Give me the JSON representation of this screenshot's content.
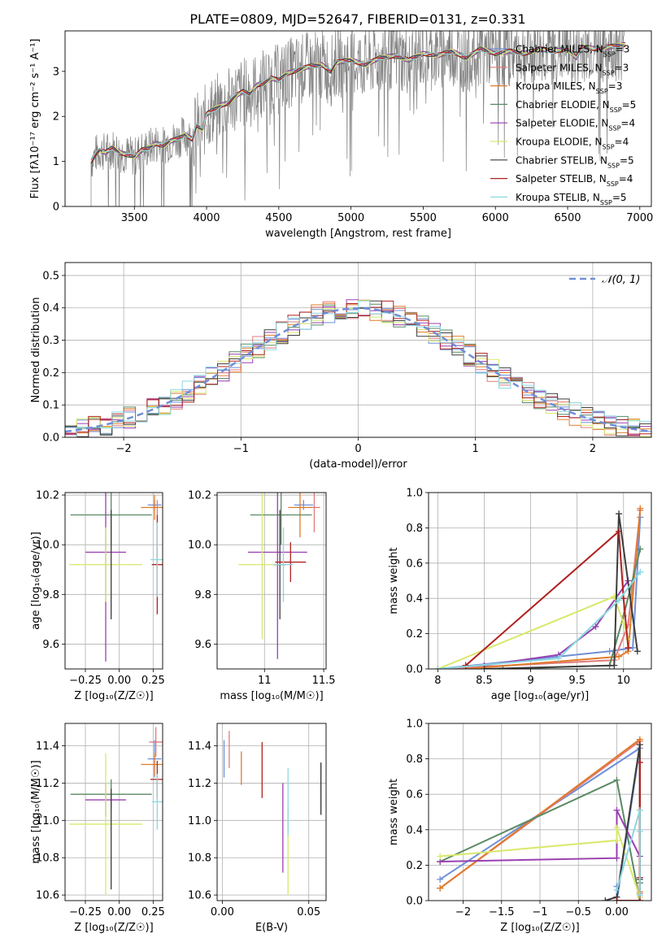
{
  "figure": {
    "title": "PLATE=0809, MJD=52647, FIBERID=0131, z=0.331"
  },
  "models": [
    {
      "name": "Chabrier MILES",
      "nssp": "3",
      "color": "#6f8fd8"
    },
    {
      "name": "Salpeter MILES",
      "nssp": "3",
      "color": "#e07b7b"
    },
    {
      "name": "Kroupa MILES",
      "nssp": "3",
      "color": "#e07b2a"
    },
    {
      "name": "Chabrier ELODIE",
      "nssp": "5",
      "color": "#5a8a64"
    },
    {
      "name": "Salpeter ELODIE",
      "nssp": "4",
      "color": "#9a3fb0"
    },
    {
      "name": "Kroupa ELODIE",
      "nssp": "4",
      "color": "#d9e86a"
    },
    {
      "name": "Chabrier STELIB",
      "nssp": "5",
      "color": "#3c3c3c"
    },
    {
      "name": "Salpeter STELIB",
      "nssp": "4",
      "color": "#b02020"
    },
    {
      "name": "Kroupa STELIB",
      "nssp": "5",
      "color": "#8ad8e0"
    }
  ],
  "chart_data": [
    {
      "id": "spectrum",
      "type": "line",
      "xlabel": "wavelength [Angstrom, rest frame]",
      "ylabel": "Flux [fλ10⁻¹⁷ erg cm⁻² s⁻¹ A⁻¹]",
      "xlim": [
        3020,
        7080
      ],
      "ylim": [
        0,
        3.9
      ],
      "xticks": [
        3500,
        4000,
        4500,
        5000,
        5500,
        6000,
        6500,
        7000
      ],
      "yticks": [
        0,
        1,
        2,
        3
      ],
      "data_color": "#808080",
      "model_line": {
        "x": [
          3200,
          3230,
          3260,
          3300,
          3350,
          3400,
          3450,
          3500,
          3550,
          3600,
          3650,
          3700,
          3750,
          3800,
          3850,
          3900,
          3930,
          3970,
          4000,
          4050,
          4100,
          4150,
          4200,
          4250,
          4300,
          4350,
          4400,
          4450,
          4500,
          4550,
          4600,
          4700,
          4800,
          4860,
          4900,
          5000,
          5100,
          5200,
          5300,
          5400,
          5500,
          5600,
          5700,
          5800,
          5900,
          6000,
          6100,
          6200,
          6300,
          6400,
          6500,
          6560,
          6600,
          6700,
          6800,
          6900
        ],
        "y": [
          1.0,
          1.15,
          1.25,
          1.2,
          1.3,
          1.2,
          1.15,
          1.1,
          1.25,
          1.3,
          1.4,
          1.35,
          1.45,
          1.5,
          1.6,
          1.5,
          1.8,
          1.7,
          2.05,
          2.15,
          2.25,
          2.3,
          2.45,
          2.55,
          2.5,
          2.7,
          2.75,
          2.85,
          2.8,
          2.95,
          3.0,
          3.1,
          3.15,
          3.0,
          3.2,
          3.25,
          3.15,
          3.3,
          3.35,
          3.25,
          3.4,
          3.35,
          3.45,
          3.3,
          3.5,
          3.4,
          3.45,
          3.4,
          3.5,
          3.45,
          3.5,
          3.3,
          3.55,
          3.5,
          3.55,
          3.6
        ]
      }
    },
    {
      "id": "residuals",
      "type": "bar",
      "xlabel": "(data-model)/error",
      "ylabel": "Normed distribution",
      "xlim": [
        -2.5,
        2.5
      ],
      "ylim": [
        0,
        0.54
      ],
      "xticks": [
        -2,
        -1,
        0,
        1,
        2
      ],
      "yticks": [
        0.0,
        0.1,
        0.2,
        0.3,
        0.4,
        0.5
      ],
      "legend": "𝒩(0, 1)",
      "bin_width": 0.1
    },
    {
      "id": "age_vs_Z",
      "type": "scatter",
      "xlabel": "Z [log₁₀(Z/Z☉)]",
      "ylabel": "age  [log₁₀(age/yr)]",
      "xlim": [
        -0.4,
        0.32
      ],
      "ylim": [
        9.5,
        10.21
      ],
      "xticks": [
        -0.25,
        0.0,
        0.25
      ],
      "yticks": [
        9.6,
        9.8,
        10.0,
        10.2
      ],
      "points": [
        {
          "x": 0.26,
          "y": 10.16,
          "xerr": 0.05,
          "yerr": 0.02
        },
        {
          "x": 0.28,
          "y": 10.15,
          "xerr": 0.05,
          "yerr": 0.03
        },
        {
          "x": 0.26,
          "y": 10.15,
          "xerr": 0.1,
          "yerr": 0.05
        },
        {
          "x": -0.06,
          "y": 10.12,
          "xerr": 0.3,
          "yerr": 0.12
        },
        {
          "x": -0.1,
          "y": 9.97,
          "xerr": 0.15,
          "yerr": 0.44
        },
        {
          "x": -0.1,
          "y": 9.92,
          "xerr": 0.27,
          "yerr": 0.15
        },
        {
          "x": -0.06,
          "y": 9.92,
          "xerr": 0.0,
          "yerr": 0.22
        },
        {
          "x": 0.28,
          "y": 9.92,
          "xerr": 0.04,
          "yerr": 0.2
        },
        {
          "x": 0.28,
          "y": 9.94,
          "xerr": 0.05,
          "yerr": 0.15
        }
      ]
    },
    {
      "id": "age_vs_mass",
      "type": "scatter",
      "xlabel": "mass [log₁₀(M/M☉)]",
      "ylabel": "",
      "xlim": [
        10.6,
        11.52
      ],
      "ylim": [
        9.5,
        10.21
      ],
      "xticks": [
        11.0,
        11.5
      ],
      "yticks": [
        9.6,
        9.8,
        10.0,
        10.2
      ],
      "points": [
        {
          "x": 11.33,
          "y": 10.16,
          "xerr": 0.08,
          "yerr": 0.02
        },
        {
          "x": 11.42,
          "y": 10.15,
          "xerr": 0.05,
          "yerr": 0.1
        },
        {
          "x": 11.3,
          "y": 10.15,
          "xerr": 0.1,
          "yerr": 0.12
        },
        {
          "x": 11.14,
          "y": 10.12,
          "xerr": 0.26,
          "yerr": 0.12
        },
        {
          "x": 11.11,
          "y": 9.97,
          "xerr": 0.25,
          "yerr": 0.43
        },
        {
          "x": 10.98,
          "y": 9.92,
          "xerr": 0.2,
          "yerr": 0.3
        },
        {
          "x": 11.13,
          "y": 9.92,
          "xerr": 0.05,
          "yerr": 0.22
        },
        {
          "x": 11.22,
          "y": 9.93,
          "xerr": 0.13,
          "yerr": 0.08
        },
        {
          "x": 11.16,
          "y": 9.92,
          "xerr": 0.08,
          "yerr": 0.15
        }
      ]
    },
    {
      "id": "weight_vs_age",
      "type": "line",
      "xlabel": "age  [log₁₀(age/yr)]",
      "ylabel": "mass weight",
      "xlim": [
        7.9,
        10.3
      ],
      "ylim": [
        0,
        1.0
      ],
      "xticks": [
        8.0,
        8.5,
        9.0,
        9.5,
        10.0
      ],
      "yticks": [
        0.0,
        0.2,
        0.4,
        0.6,
        0.8,
        1.0
      ],
      "series": [
        {
          "x": [
            8.0,
            9.85,
            10.1,
            10.18
          ],
          "y": [
            0.0,
            0.1,
            0.12,
            0.86
          ]
        },
        {
          "x": [
            8.0,
            9.9,
            10.05,
            10.18
          ],
          "y": [
            0.0,
            0.05,
            0.25,
            0.9
          ]
        },
        {
          "x": [
            8.3,
            9.95,
            10.05,
            10.18
          ],
          "y": [
            0.0,
            0.07,
            0.1,
            0.91
          ]
        },
        {
          "x": [
            8.7,
            9.85,
            10.0,
            10.18
          ],
          "y": [
            0.0,
            0.02,
            0.3,
            0.68
          ]
        },
        {
          "x": [
            8.5,
            9.3,
            9.7,
            10.05
          ],
          "y": [
            0.02,
            0.08,
            0.24,
            0.5
          ]
        },
        {
          "x": [
            8.0,
            9.9,
            10.0,
            10.05
          ],
          "y": [
            0.0,
            0.41,
            0.26,
            0.17
          ]
        },
        {
          "x": [
            8.5,
            9.9,
            9.95,
            10.15
          ],
          "y": [
            0.0,
            0.02,
            0.88,
            0.1
          ]
        },
        {
          "x": [
            8.3,
            9.95,
            10.0,
            10.05
          ],
          "y": [
            0.02,
            0.78,
            0.4,
            0.12
          ]
        },
        {
          "x": [
            8.0,
            9.3,
            9.95,
            10.18
          ],
          "y": [
            0.0,
            0.06,
            0.39,
            0.55
          ]
        }
      ]
    },
    {
      "id": "mass_vs_Z",
      "type": "scatter",
      "xlabel": "Z [log₁₀(Z/Z☉)]",
      "ylabel": "mass [log₁₀(M/M☉)]",
      "xlim": [
        -0.4,
        0.32
      ],
      "ylim": [
        10.57,
        11.52
      ],
      "xticks": [
        -0.25,
        0.0,
        0.25
      ],
      "yticks": [
        10.6,
        10.8,
        11.0,
        11.2,
        11.4
      ],
      "points": [
        {
          "x": 0.26,
          "y": 11.33,
          "xerr": 0.05,
          "yerr": 0.1
        },
        {
          "x": 0.27,
          "y": 11.42,
          "xerr": 0.05,
          "yerr": 0.08
        },
        {
          "x": 0.26,
          "y": 11.3,
          "xerr": 0.1,
          "yerr": 0.06
        },
        {
          "x": -0.06,
          "y": 11.14,
          "xerr": 0.3,
          "yerr": 0.08
        },
        {
          "x": -0.1,
          "y": 11.11,
          "xerr": 0.15,
          "yerr": 0.09
        },
        {
          "x": -0.1,
          "y": 10.98,
          "xerr": 0.27,
          "yerr": 0.38
        },
        {
          "x": -0.06,
          "y": 10.9,
          "xerr": 0.0,
          "yerr": 0.27
        },
        {
          "x": 0.28,
          "y": 11.22,
          "xerr": 0.05,
          "yerr": 0.1
        },
        {
          "x": 0.28,
          "y": 11.1,
          "xerr": 0.04,
          "yerr": 0.15
        }
      ]
    },
    {
      "id": "mass_vs_EBV",
      "type": "scatter",
      "xlabel": "E(B-V)",
      "ylabel": "",
      "xlim": [
        -0.003,
        0.06
      ],
      "ylim": [
        10.57,
        11.52
      ],
      "xticks": [
        0.0,
        0.05
      ],
      "yticks": [
        10.6,
        10.8,
        11.0,
        11.2,
        11.4
      ],
      "points": [
        {
          "x": 0.001,
          "y": 11.33,
          "yerr": 0.1
        },
        {
          "x": 0.004,
          "y": 11.38,
          "yerr": 0.1
        },
        {
          "x": 0.011,
          "y": 11.28,
          "yerr": 0.09
        },
        {
          "x": 0.057,
          "y": 11.17,
          "yerr": 0.14
        },
        {
          "x": 0.035,
          "y": 10.96,
          "yerr": 0.24
        },
        {
          "x": 0.038,
          "y": 10.84,
          "yerr": 0.24
        },
        {
          "x": 0.057,
          "y": 11.17,
          "yerr": 0.14
        },
        {
          "x": 0.023,
          "y": 11.27,
          "yerr": 0.15
        },
        {
          "x": 0.038,
          "y": 11.1,
          "yerr": 0.18
        }
      ]
    },
    {
      "id": "weight_vs_Z",
      "type": "line",
      "xlabel": "Z [log₁₀(Z/Z☉)]",
      "ylabel": "mass weight",
      "xlim": [
        -2.45,
        0.45
      ],
      "ylim": [
        0,
        1.0
      ],
      "xticks": [
        -2.0,
        -1.5,
        -1.0,
        -0.5,
        0.0
      ],
      "yticks": [
        0.0,
        0.2,
        0.4,
        0.6,
        0.8,
        1.0
      ],
      "series": [
        {
          "x": [
            -2.3,
            0.3,
            0.0,
            0.0
          ],
          "y": [
            0.12,
            0.86,
            0.0,
            0.08
          ]
        },
        {
          "x": [
            -2.3,
            0.3,
            0.3,
            0.3
          ],
          "y": [
            0.07,
            0.9,
            0.1,
            0.04
          ]
        },
        {
          "x": [
            -2.3,
            0.3,
            0.3,
            0.3
          ],
          "y": [
            0.07,
            0.91,
            0.05,
            0.0
          ]
        },
        {
          "x": [
            -2.3,
            0.0,
            0.3,
            0.3
          ],
          "y": [
            0.22,
            0.68,
            0.0,
            0.1
          ]
        },
        {
          "x": [
            -2.3,
            0.0,
            0.0,
            0.3
          ],
          "y": [
            0.22,
            0.24,
            0.51,
            0.25
          ]
        },
        {
          "x": [
            -2.3,
            0.0,
            0.0,
            0.3
          ],
          "y": [
            0.25,
            0.34,
            0.41,
            0.02
          ]
        },
        {
          "x": [
            -0.15,
            0.0,
            0.3,
            0.3
          ],
          "y": [
            0.0,
            0.02,
            0.88,
            0.12
          ]
        },
        {
          "x": [
            0.3,
            0.3,
            0.3,
            0.0
          ],
          "y": [
            0.78,
            0.13,
            0.0,
            0.0
          ]
        },
        {
          "x": [
            0.0,
            0.3,
            0.3,
            0.3
          ],
          "y": [
            0.06,
            0.51,
            0.39,
            0.03
          ]
        }
      ]
    }
  ]
}
